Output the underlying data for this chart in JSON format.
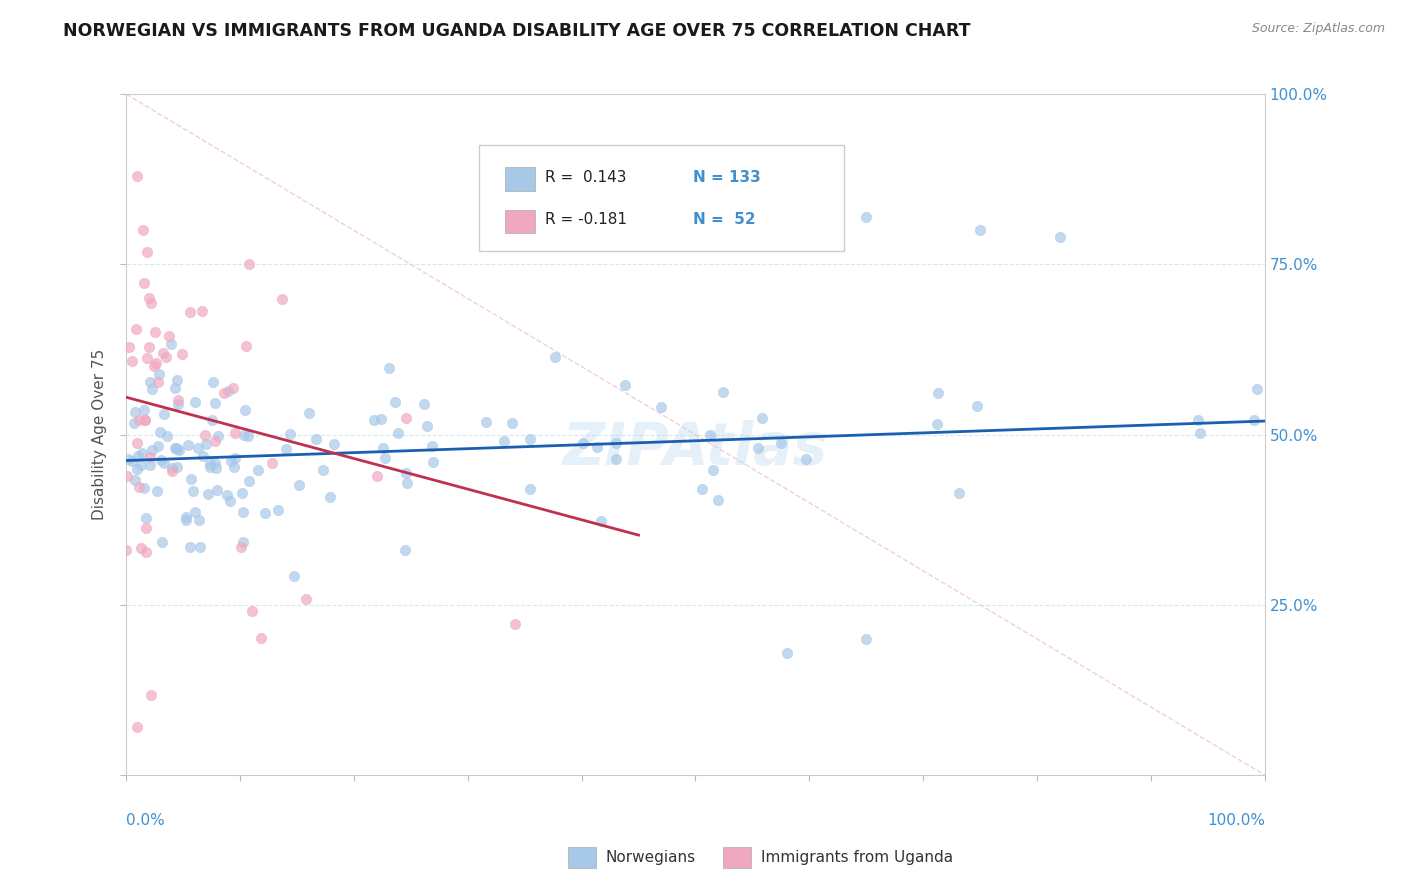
{
  "title": "NORWEGIAN VS IMMIGRANTS FROM UGANDA DISABILITY AGE OVER 75 CORRELATION CHART",
  "source": "Source: ZipAtlas.com",
  "ylabel": "Disability Age Over 75",
  "legend_labels": [
    "Norwegians",
    "Immigrants from Uganda"
  ],
  "r1": 0.143,
  "n1": 133,
  "r2": -0.181,
  "n2": 52,
  "color_norwegian": "#a8c8e8",
  "color_uganda": "#f0a8c0",
  "color_line_norwegian": "#1a5fb0",
  "color_line_uganda": "#c03050",
  "color_diag": "#e0b0c0",
  "background_color": "#ffffff",
  "watermark": "ZIPAtlas",
  "grid_color": "#d8e8f0",
  "tick_color": "#4090d0",
  "legend_text_color": "#222222",
  "legend_n_color": "#4090d0",
  "ylabel_color": "#555555"
}
